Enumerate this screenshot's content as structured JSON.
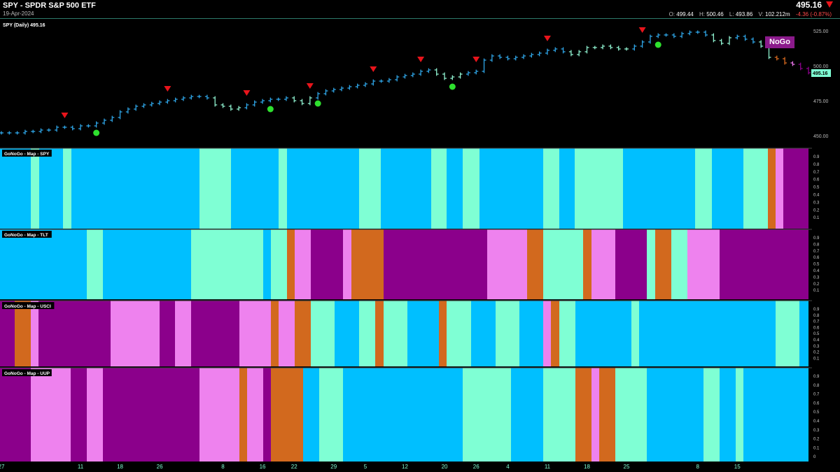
{
  "header": {
    "title": "SPY - SPDR S&P 500 ETF",
    "date": "19-Apr-2024",
    "last_price": "495.16",
    "ohlc": {
      "o_label": "O:",
      "o_value": "499.44",
      "h_label": "H:",
      "h_value": "500.46",
      "l_label": "L:",
      "l_value": "493.86",
      "v_label": "V:",
      "v_value": "102.212m",
      "change": "-4.36 (-0.87%)"
    }
  },
  "chart_data": [
    {
      "type": "line",
      "title": "SPY (Daily) 495.16",
      "ylim": [
        442,
        533
      ],
      "y_ticks": [
        "525.00",
        "500.00",
        "475.00",
        "450.00"
      ],
      "last_value_label": "495.16",
      "badge": "NoGo",
      "x_tick_labels": [
        {
          "label": "27",
          "bar": 0
        },
        {
          "label": "11",
          "bar": 10
        },
        {
          "label": "18",
          "bar": 15
        },
        {
          "label": "26",
          "bar": 20
        },
        {
          "label": "8",
          "bar": 28
        },
        {
          "label": "16",
          "bar": 33
        },
        {
          "label": "22",
          "bar": 37
        },
        {
          "label": "29",
          "bar": 42
        },
        {
          "label": "5",
          "bar": 46
        },
        {
          "label": "12",
          "bar": 51
        },
        {
          "label": "20",
          "bar": 56
        },
        {
          "label": "26",
          "bar": 60
        },
        {
          "label": "4",
          "bar": 64
        },
        {
          "label": "11",
          "bar": 69
        },
        {
          "label": "18",
          "bar": 74
        },
        {
          "label": "25",
          "bar": 79
        },
        {
          "label": "8",
          "bar": 88
        },
        {
          "label": "15",
          "bar": 93
        }
      ],
      "series": [
        {
          "values": [
            452,
            452,
            452,
            453,
            453,
            454,
            454,
            456,
            456,
            455,
            457,
            457,
            459,
            461,
            463,
            467,
            469,
            471,
            472,
            473,
            474,
            475,
            476,
            477,
            478,
            478,
            477,
            472,
            471,
            469,
            470,
            472,
            474,
            475,
            476,
            476,
            477,
            475,
            473,
            477,
            480,
            482,
            483,
            484,
            485,
            486,
            487,
            489,
            489,
            490,
            492,
            493,
            494,
            496,
            497,
            494,
            491,
            492,
            494,
            495,
            496,
            504,
            507,
            506,
            505,
            506,
            507,
            508,
            509,
            511,
            512,
            510,
            508,
            510,
            513,
            513,
            514,
            513,
            512,
            512,
            514,
            517,
            521,
            522,
            522,
            521,
            523,
            524,
            524,
            522,
            518,
            516,
            520,
            521,
            519,
            517,
            514,
            506,
            505,
            502,
            501,
            498,
            495
          ]
        }
      ],
      "bar_colors": [
        "#2fa6e8",
        "#8ff2d0",
        "#eb77ec",
        "#8a008a",
        "#d96a1f"
      ],
      "bar_states": [
        0,
        0,
        0,
        0,
        0,
        0,
        0,
        0,
        0,
        0,
        0,
        0,
        0,
        0,
        0,
        0,
        0,
        0,
        0,
        0,
        0,
        0,
        0,
        0,
        0,
        0,
        0,
        1,
        1,
        1,
        1,
        0,
        0,
        0,
        0,
        0,
        0,
        1,
        1,
        1,
        0,
        0,
        0,
        0,
        0,
        0,
        0,
        0,
        0,
        0,
        0,
        0,
        0,
        0,
        0,
        1,
        1,
        1,
        1,
        0,
        0,
        0,
        0,
        0,
        0,
        0,
        0,
        0,
        0,
        0,
        0,
        0,
        1,
        1,
        1,
        1,
        1,
        1,
        1,
        1,
        0,
        0,
        0,
        0,
        0,
        0,
        0,
        0,
        0,
        0,
        1,
        1,
        1,
        0,
        0,
        0,
        1,
        1,
        4,
        4,
        2,
        3,
        3
      ],
      "go_markers": {
        "bars": [
          8,
          21,
          31,
          39,
          47,
          53,
          60,
          69,
          81
        ],
        "color": "#e8141b"
      },
      "bottom_markers": {
        "bars": [
          12,
          34,
          40,
          57,
          83
        ],
        "color": "#2ee02e"
      }
    },
    {
      "type": "heatmap",
      "title": "GoNoGo - Map - SPY",
      "y_ticks": [
        "0.9",
        "0.8",
        "0.7",
        "0.6",
        "0.5",
        "0.4",
        "0.3",
        "0.2",
        "0.1"
      ],
      "colors": {
        "B": "#00bfff",
        "A": "#7fffd4",
        "P": "#ee82ee",
        "M": "#8b008b",
        "O": "#d2691e"
      },
      "segments": [
        [
          "B",
          0,
          44
        ],
        [
          "A",
          44,
          56
        ],
        [
          "B",
          56,
          90
        ],
        [
          "A",
          90,
          102
        ],
        [
          "B",
          102,
          285
        ],
        [
          "A",
          285,
          330
        ],
        [
          "B",
          330,
          398
        ],
        [
          "A",
          398,
          410
        ],
        [
          "B",
          410,
          513
        ],
        [
          "A",
          513,
          544
        ],
        [
          "B",
          544,
          616
        ],
        [
          "A",
          616,
          638
        ],
        [
          "B",
          638,
          661
        ],
        [
          "A",
          661,
          685
        ],
        [
          "B",
          685,
          776
        ],
        [
          "A",
          776,
          799
        ],
        [
          "B",
          799,
          821
        ],
        [
          "A",
          821,
          890
        ],
        [
          "B",
          890,
          993
        ],
        [
          "A",
          993,
          1017
        ],
        [
          "B",
          1017,
          1062
        ],
        [
          "A",
          1062,
          1097
        ],
        [
          "O",
          1097,
          1108
        ],
        [
          "P",
          1108,
          1119
        ],
        [
          "M",
          1119,
          1155
        ]
      ]
    },
    {
      "type": "heatmap",
      "title": "GoNoGo - Map - TLT",
      "y_ticks": [
        "0.9",
        "0.8",
        "0.7",
        "0.6",
        "0.5",
        "0.4",
        "0.3",
        "0.2",
        "0.1"
      ],
      "colors": {
        "B": "#00bfff",
        "A": "#7fffd4",
        "P": "#ee82ee",
        "M": "#8b008b",
        "O": "#d2691e"
      },
      "segments": [
        [
          "B",
          0,
          124
        ],
        [
          "A",
          124,
          147
        ],
        [
          "B",
          147,
          273
        ],
        [
          "A",
          273,
          376
        ],
        [
          "B",
          376,
          387
        ],
        [
          "A",
          387,
          410
        ],
        [
          "O",
          410,
          421
        ],
        [
          "P",
          421,
          444
        ],
        [
          "M",
          444,
          490
        ],
        [
          "P",
          490,
          502
        ],
        [
          "O",
          502,
          548
        ],
        [
          "M",
          548,
          696
        ],
        [
          "P",
          696,
          753
        ],
        [
          "O",
          753,
          776
        ],
        [
          "A",
          776,
          833
        ],
        [
          "O",
          833,
          845
        ],
        [
          "P",
          845,
          879
        ],
        [
          "M",
          879,
          924
        ],
        [
          "A",
          924,
          936
        ],
        [
          "O",
          936,
          959
        ],
        [
          "A",
          959,
          982
        ],
        [
          "P",
          982,
          1028
        ],
        [
          "M",
          1028,
          1155
        ]
      ]
    },
    {
      "type": "heatmap",
      "title": "GoNoGo - Map - USCI",
      "y_ticks": [
        "0.9",
        "0.8",
        "0.7",
        "0.6",
        "0.5",
        "0.4",
        "0.3",
        "0.2",
        "0.1"
      ],
      "colors": {
        "B": "#00bfff",
        "A": "#7fffd4",
        "P": "#ee82ee",
        "M": "#8b008b",
        "O": "#d2691e"
      },
      "segments": [
        [
          "M",
          0,
          21
        ],
        [
          "O",
          21,
          44
        ],
        [
          "P",
          44,
          55
        ],
        [
          "M",
          55,
          158
        ],
        [
          "P",
          158,
          228
        ],
        [
          "M",
          228,
          250
        ],
        [
          "P",
          250,
          273
        ],
        [
          "M",
          273,
          342
        ],
        [
          "P",
          342,
          387
        ],
        [
          "O",
          387,
          398
        ],
        [
          "P",
          398,
          421
        ],
        [
          "O",
          421,
          444
        ],
        [
          "A",
          444,
          478
        ],
        [
          "B",
          478,
          513
        ],
        [
          "A",
          513,
          536
        ],
        [
          "O",
          536,
          548
        ],
        [
          "A",
          548,
          582
        ],
        [
          "B",
          582,
          627
        ],
        [
          "O",
          627,
          638
        ],
        [
          "A",
          638,
          673
        ],
        [
          "B",
          673,
          708
        ],
        [
          "A",
          708,
          742
        ],
        [
          "B",
          742,
          776
        ],
        [
          "P",
          776,
          787
        ],
        [
          "O",
          787,
          799
        ],
        [
          "A",
          799,
          822
        ],
        [
          "B",
          822,
          902
        ],
        [
          "A",
          902,
          913
        ],
        [
          "B",
          913,
          1108
        ],
        [
          "A",
          1108,
          1142
        ],
        [
          "B",
          1142,
          1155
        ]
      ]
    },
    {
      "type": "heatmap",
      "title": "GoNoGo - Map - UUP",
      "y_ticks": [
        "0.9",
        "0.8",
        "0.7",
        "0.6",
        "0.5",
        "0.4",
        "0.3",
        "0.2",
        "0.1",
        "0"
      ],
      "colors": {
        "B": "#00bfff",
        "A": "#7fffd4",
        "P": "#ee82ee",
        "M": "#8b008b",
        "O": "#d2691e"
      },
      "segments": [
        [
          "M",
          0,
          44
        ],
        [
          "P",
          44,
          101
        ],
        [
          "M",
          101,
          124
        ],
        [
          "P",
          124,
          147
        ],
        [
          "M",
          147,
          285
        ],
        [
          "P",
          285,
          342
        ],
        [
          "O",
          342,
          353
        ],
        [
          "P",
          353,
          376
        ],
        [
          "M",
          376,
          387
        ],
        [
          "O",
          387,
          433
        ],
        [
          "B",
          433,
          456
        ],
        [
          "A",
          456,
          490
        ],
        [
          "B",
          490,
          661
        ],
        [
          "A",
          661,
          730
        ],
        [
          "B",
          730,
          776
        ],
        [
          "A",
          776,
          822
        ],
        [
          "O",
          822,
          845
        ],
        [
          "P",
          845,
          856
        ],
        [
          "O",
          856,
          879
        ],
        [
          "A",
          879,
          924
        ],
        [
          "B",
          924,
          1005
        ],
        [
          "A",
          1005,
          1028
        ],
        [
          "B",
          1028,
          1051
        ],
        [
          "A",
          1051,
          1062
        ],
        [
          "B",
          1062,
          1155
        ]
      ]
    }
  ]
}
